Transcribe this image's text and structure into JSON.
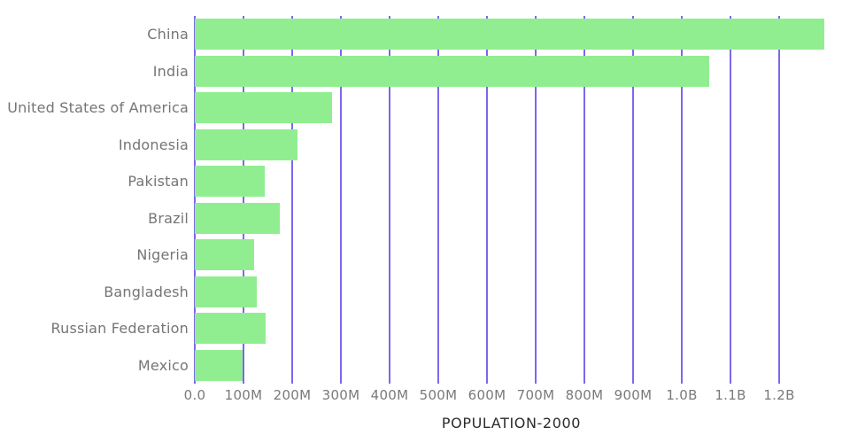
{
  "title": "POPULATION-2000",
  "colors": {
    "bar": "#90ee90",
    "gridline": "#7b68ee",
    "category_label": "#757575",
    "tick_label": "#7a7a7a",
    "title": "#2b2b2b",
    "background": "#ffffff"
  },
  "chart_data": {
    "type": "bar",
    "orientation": "horizontal",
    "title": "POPULATION-2000",
    "xlabel": "POPULATION-2000",
    "ylabel": "",
    "categories": [
      "China",
      "India",
      "United States of America",
      "Indonesia",
      "Pakistan",
      "Brazil",
      "Nigeria",
      "Bangladesh",
      "Russian Federation",
      "Mexico"
    ],
    "values_millions": [
      1293,
      1056,
      282,
      211,
      143,
      175,
      122,
      128,
      146,
      99
    ],
    "unit": "persons (values in millions)",
    "xlim_millions": [
      0,
      1300
    ],
    "x_tick_values_millions": [
      0,
      100,
      200,
      300,
      400,
      500,
      600,
      700,
      800,
      900,
      1000,
      1100,
      1200
    ],
    "x_tick_labels": [
      "0.0",
      "100M",
      "200M",
      "300M",
      "400M",
      "500M",
      "600M",
      "700M",
      "800M",
      "900M",
      "1.0B",
      "1.1B",
      "1.2B"
    ],
    "grid": "vertical-gridlines-on",
    "legend": "none"
  }
}
